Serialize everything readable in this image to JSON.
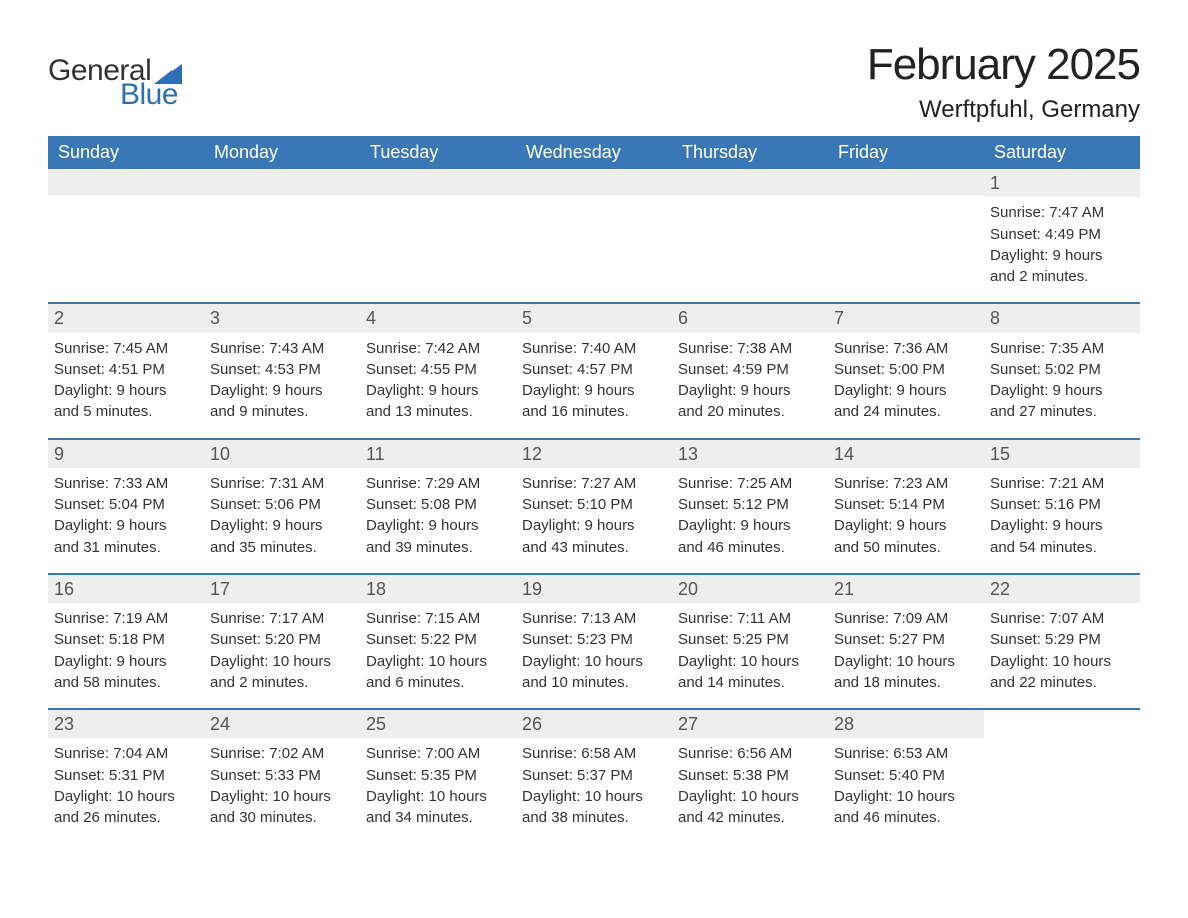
{
  "logo": {
    "text1": "General",
    "text2": "Blue",
    "text_color1": "#333333",
    "text_color2": "#2f6fb6"
  },
  "title": "February 2025",
  "location": "Werftpfuhl, Germany",
  "colors": {
    "header_bg": "#3a77b7",
    "header_text": "#ffffff",
    "daynum_bg": "#eeeeee",
    "daynum_text": "#555555",
    "body_text": "#333333",
    "week_border": "#3a77b7",
    "page_bg": "#ffffff"
  },
  "typography": {
    "title_fontsize": 44,
    "location_fontsize": 24,
    "weekday_fontsize": 18,
    "daynum_fontsize": 18,
    "body_fontsize": 15
  },
  "weekdays": [
    "Sunday",
    "Monday",
    "Tuesday",
    "Wednesday",
    "Thursday",
    "Friday",
    "Saturday"
  ],
  "weeks": [
    [
      {
        "num": "",
        "sunrise": "",
        "sunset": "",
        "dl1": "",
        "dl2": ""
      },
      {
        "num": "",
        "sunrise": "",
        "sunset": "",
        "dl1": "",
        "dl2": ""
      },
      {
        "num": "",
        "sunrise": "",
        "sunset": "",
        "dl1": "",
        "dl2": ""
      },
      {
        "num": "",
        "sunrise": "",
        "sunset": "",
        "dl1": "",
        "dl2": ""
      },
      {
        "num": "",
        "sunrise": "",
        "sunset": "",
        "dl1": "",
        "dl2": ""
      },
      {
        "num": "",
        "sunrise": "",
        "sunset": "",
        "dl1": "",
        "dl2": ""
      },
      {
        "num": "1",
        "sunrise": "Sunrise: 7:47 AM",
        "sunset": "Sunset: 4:49 PM",
        "dl1": "Daylight: 9 hours",
        "dl2": "and 2 minutes."
      }
    ],
    [
      {
        "num": "2",
        "sunrise": "Sunrise: 7:45 AM",
        "sunset": "Sunset: 4:51 PM",
        "dl1": "Daylight: 9 hours",
        "dl2": "and 5 minutes."
      },
      {
        "num": "3",
        "sunrise": "Sunrise: 7:43 AM",
        "sunset": "Sunset: 4:53 PM",
        "dl1": "Daylight: 9 hours",
        "dl2": "and 9 minutes."
      },
      {
        "num": "4",
        "sunrise": "Sunrise: 7:42 AM",
        "sunset": "Sunset: 4:55 PM",
        "dl1": "Daylight: 9 hours",
        "dl2": "and 13 minutes."
      },
      {
        "num": "5",
        "sunrise": "Sunrise: 7:40 AM",
        "sunset": "Sunset: 4:57 PM",
        "dl1": "Daylight: 9 hours",
        "dl2": "and 16 minutes."
      },
      {
        "num": "6",
        "sunrise": "Sunrise: 7:38 AM",
        "sunset": "Sunset: 4:59 PM",
        "dl1": "Daylight: 9 hours",
        "dl2": "and 20 minutes."
      },
      {
        "num": "7",
        "sunrise": "Sunrise: 7:36 AM",
        "sunset": "Sunset: 5:00 PM",
        "dl1": "Daylight: 9 hours",
        "dl2": "and 24 minutes."
      },
      {
        "num": "8",
        "sunrise": "Sunrise: 7:35 AM",
        "sunset": "Sunset: 5:02 PM",
        "dl1": "Daylight: 9 hours",
        "dl2": "and 27 minutes."
      }
    ],
    [
      {
        "num": "9",
        "sunrise": "Sunrise: 7:33 AM",
        "sunset": "Sunset: 5:04 PM",
        "dl1": "Daylight: 9 hours",
        "dl2": "and 31 minutes."
      },
      {
        "num": "10",
        "sunrise": "Sunrise: 7:31 AM",
        "sunset": "Sunset: 5:06 PM",
        "dl1": "Daylight: 9 hours",
        "dl2": "and 35 minutes."
      },
      {
        "num": "11",
        "sunrise": "Sunrise: 7:29 AM",
        "sunset": "Sunset: 5:08 PM",
        "dl1": "Daylight: 9 hours",
        "dl2": "and 39 minutes."
      },
      {
        "num": "12",
        "sunrise": "Sunrise: 7:27 AM",
        "sunset": "Sunset: 5:10 PM",
        "dl1": "Daylight: 9 hours",
        "dl2": "and 43 minutes."
      },
      {
        "num": "13",
        "sunrise": "Sunrise: 7:25 AM",
        "sunset": "Sunset: 5:12 PM",
        "dl1": "Daylight: 9 hours",
        "dl2": "and 46 minutes."
      },
      {
        "num": "14",
        "sunrise": "Sunrise: 7:23 AM",
        "sunset": "Sunset: 5:14 PM",
        "dl1": "Daylight: 9 hours",
        "dl2": "and 50 minutes."
      },
      {
        "num": "15",
        "sunrise": "Sunrise: 7:21 AM",
        "sunset": "Sunset: 5:16 PM",
        "dl1": "Daylight: 9 hours",
        "dl2": "and 54 minutes."
      }
    ],
    [
      {
        "num": "16",
        "sunrise": "Sunrise: 7:19 AM",
        "sunset": "Sunset: 5:18 PM",
        "dl1": "Daylight: 9 hours",
        "dl2": "and 58 minutes."
      },
      {
        "num": "17",
        "sunrise": "Sunrise: 7:17 AM",
        "sunset": "Sunset: 5:20 PM",
        "dl1": "Daylight: 10 hours",
        "dl2": "and 2 minutes."
      },
      {
        "num": "18",
        "sunrise": "Sunrise: 7:15 AM",
        "sunset": "Sunset: 5:22 PM",
        "dl1": "Daylight: 10 hours",
        "dl2": "and 6 minutes."
      },
      {
        "num": "19",
        "sunrise": "Sunrise: 7:13 AM",
        "sunset": "Sunset: 5:23 PM",
        "dl1": "Daylight: 10 hours",
        "dl2": "and 10 minutes."
      },
      {
        "num": "20",
        "sunrise": "Sunrise: 7:11 AM",
        "sunset": "Sunset: 5:25 PM",
        "dl1": "Daylight: 10 hours",
        "dl2": "and 14 minutes."
      },
      {
        "num": "21",
        "sunrise": "Sunrise: 7:09 AM",
        "sunset": "Sunset: 5:27 PM",
        "dl1": "Daylight: 10 hours",
        "dl2": "and 18 minutes."
      },
      {
        "num": "22",
        "sunrise": "Sunrise: 7:07 AM",
        "sunset": "Sunset: 5:29 PM",
        "dl1": "Daylight: 10 hours",
        "dl2": "and 22 minutes."
      }
    ],
    [
      {
        "num": "23",
        "sunrise": "Sunrise: 7:04 AM",
        "sunset": "Sunset: 5:31 PM",
        "dl1": "Daylight: 10 hours",
        "dl2": "and 26 minutes."
      },
      {
        "num": "24",
        "sunrise": "Sunrise: 7:02 AM",
        "sunset": "Sunset: 5:33 PM",
        "dl1": "Daylight: 10 hours",
        "dl2": "and 30 minutes."
      },
      {
        "num": "25",
        "sunrise": "Sunrise: 7:00 AM",
        "sunset": "Sunset: 5:35 PM",
        "dl1": "Daylight: 10 hours",
        "dl2": "and 34 minutes."
      },
      {
        "num": "26",
        "sunrise": "Sunrise: 6:58 AM",
        "sunset": "Sunset: 5:37 PM",
        "dl1": "Daylight: 10 hours",
        "dl2": "and 38 minutes."
      },
      {
        "num": "27",
        "sunrise": "Sunrise: 6:56 AM",
        "sunset": "Sunset: 5:38 PM",
        "dl1": "Daylight: 10 hours",
        "dl2": "and 42 minutes."
      },
      {
        "num": "28",
        "sunrise": "Sunrise: 6:53 AM",
        "sunset": "Sunset: 5:40 PM",
        "dl1": "Daylight: 10 hours",
        "dl2": "and 46 minutes."
      },
      {
        "num": "",
        "sunrise": "",
        "sunset": "",
        "dl1": "",
        "dl2": ""
      }
    ]
  ]
}
